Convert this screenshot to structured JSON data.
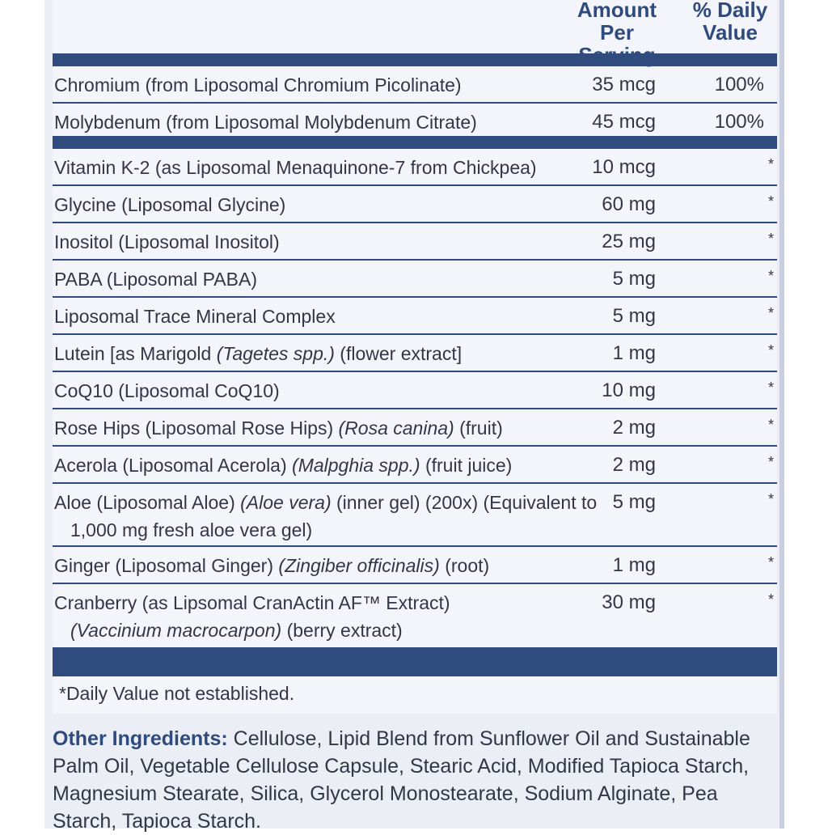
{
  "header": {
    "amount_label_1": "Amount Per",
    "amount_label_2": "Serving",
    "dv_label_1": "% Daily",
    "dv_label_2": "Value"
  },
  "nutrients": [
    {
      "name": "Chromium (from Liposomal Chromium Picolinate)",
      "amount": "35 mcg",
      "dv": "100%"
    },
    {
      "name": "Molybdenum (from Liposomal Molybdenum Citrate)",
      "amount": "45 mcg",
      "dv": "100%"
    }
  ],
  "ingredients": [
    {
      "name": "Vitamin K-2 (as Liposomal Menaquinone-7 from Chickpea)",
      "amount": "10 mcg",
      "dv": "*"
    },
    {
      "name": "Glycine (Liposomal Glycine)",
      "amount": "60 mg",
      "dv": "*"
    },
    {
      "name": "Inositol (Liposomal Inositol)",
      "amount": "25 mg",
      "dv": "*"
    },
    {
      "name": "PABA (Liposomal PABA)",
      "amount": "5 mg",
      "dv": "*"
    },
    {
      "name": "Liposomal Trace Mineral Complex",
      "amount": "5 mg",
      "dv": "*"
    },
    {
      "name_a": "Lutein [as Marigold ",
      "name_i": "(Tagetes spp.)",
      "name_b": " (flower extract]",
      "amount": "1 mg",
      "dv": "*"
    },
    {
      "name": "CoQ10 (Liposomal CoQ10)",
      "amount": "10 mg",
      "dv": "*"
    },
    {
      "name_a": "Rose Hips (Liposomal Rose Hips) ",
      "name_i": "(Rosa canina)",
      "name_b": " (fruit)",
      "amount": "2 mg",
      "dv": "*"
    },
    {
      "name_a": "Acerola (Liposomal Acerola) ",
      "name_i": "(Malpghia spp.)",
      "name_b": " (fruit juice)",
      "amount": "2 mg",
      "dv": "*"
    },
    {
      "name_a": "Aloe (Liposomal Aloe) ",
      "name_i": "(Aloe vera)",
      "name_b": " (inner gel) (200x) (Equivalent to",
      "line2": "1,000 mg fresh aloe vera gel)",
      "amount": "5 mg",
      "dv": "*"
    },
    {
      "name_a": "Ginger (Liposomal Ginger) ",
      "name_i": "(Zingiber officinalis)",
      "name_b": " (root)",
      "amount": "1 mg",
      "dv": "*"
    },
    {
      "name_a": "Cranberry (as Lipsomal CranActin AF™ Extract)",
      "line2_i": "(Vaccinium macrocarpon)",
      "line2_b": " (berry extract)",
      "amount": "30 mg",
      "dv": "*"
    }
  ],
  "footnote": "*Daily Value not established.",
  "other_ingredients": {
    "label": "Other Ingredients:",
    "text": " Cellulose, Lipid Blend from Sunflower Oil and Sustainable Palm Oil, Vegetable Cellulose Capsule, Stearic Acid, Modified Tapioca Starch, Magnesium Stearate, Silica, Glycerol Monostearate, Sodium Alginate, Pea Starch, Tapioca Starch."
  },
  "colors": {
    "accent": "#304b7d",
    "background": "#eceef6"
  }
}
